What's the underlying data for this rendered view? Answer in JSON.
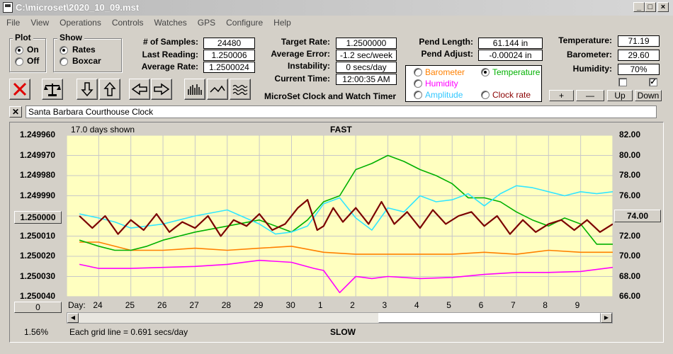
{
  "window": {
    "title": "C:\\microset\\2020_10_09.mst"
  },
  "menu": [
    "File",
    "View",
    "Operations",
    "Controls",
    "Watches",
    "GPS",
    "Configure",
    "Help"
  ],
  "plot": {
    "label": "Plot",
    "on": "On",
    "off": "Off",
    "selected": "On"
  },
  "show": {
    "label": "Show",
    "rates": "Rates",
    "boxcar": "Boxcar",
    "selected": "Rates"
  },
  "stats": {
    "samples_label": "# of Samples:",
    "samples": "24480",
    "last_label": "Last Reading:",
    "last": "1.250006",
    "avg_label": "Average Rate:",
    "avg": "1.2500024",
    "target_label": "Target Rate:",
    "target": "1.2500000",
    "avg_err_label": "Average Error:",
    "avg_err": "-1.2 sec/week",
    "instab_label": "Instability:",
    "instab": "0 secs/day",
    "time_label": "Current Time:",
    "time": "12:00:35 AM",
    "pend_len_label": "Pend Length:",
    "pend_len": "61.144 in",
    "pend_adj_label": "Pend Adjust:",
    "pend_adj": "-0.00024 in",
    "temp_label": "Temperature:",
    "temp": "71.19",
    "baro_label": "Barometer:",
    "baro": "29.60",
    "hum_label": "Humidity:",
    "hum": "70%"
  },
  "app_subtitle": "MicroSet Clock and Watch Timer",
  "legend": {
    "barometer": "Barometer",
    "temperature": "Temperature",
    "humidity": "Humidity",
    "amplitude": "Amplitude",
    "clock_rate": "Clock rate",
    "selected": "Temperature"
  },
  "sensor_buttons": {
    "plus": "+",
    "minus": "—",
    "up": "Up",
    "down": "Down"
  },
  "clock_name": "Santa Barbara Courthouse Clock",
  "chart_header": {
    "days_shown": "17.0 days shown",
    "fast": "FAST",
    "slow": "SLOW",
    "grid_note": "Each grid line = 0.691 secs/day",
    "zoom": "1.56%",
    "left_btn": "1.250000",
    "right_btn": "74.00",
    "bottom_btn": "0",
    "day_label": "Day:"
  },
  "colors": {
    "plot_bg": "#ffffc0",
    "rate": "#7b0000",
    "temperature": "#00b000",
    "barometer": "#ff8000",
    "humidity": "#ff00ff",
    "amplitude": "#33e6ff"
  },
  "chart_data": {
    "type": "line",
    "x_unit": "day",
    "x_ticks": [
      "24",
      "25",
      "26",
      "27",
      "28",
      "29",
      "30",
      "1",
      "2",
      "3",
      "4",
      "5",
      "6",
      "7",
      "8",
      "9"
    ],
    "y_left_ticks": [
      "1.249960",
      "1.249970",
      "1.249980",
      "1.249990",
      "1.250000",
      "1.250010",
      "1.250020",
      "1.250030",
      "1.250040"
    ],
    "y_left_lim": [
      1.25004,
      1.24996
    ],
    "y_right_ticks": [
      "82.00",
      "80.00",
      "78.00",
      "76.00",
      "74.00",
      "72.00",
      "70.00",
      "68.00",
      "66.00"
    ],
    "y_right_lim": [
      66,
      82
    ],
    "series": [
      {
        "name": "Clock rate",
        "color": "#7b0000",
        "axis": "left",
        "x": [
          23.4,
          23.8,
          24.2,
          24.6,
          25.0,
          25.4,
          25.8,
          26.2,
          26.6,
          27.0,
          27.4,
          27.8,
          28.2,
          28.6,
          29.0,
          29.4,
          29.8,
          30.2,
          30.5,
          30.8,
          31.0,
          31.3,
          31.6,
          32.0,
          32.4,
          32.8,
          33.2,
          33.6,
          34.0,
          34.4,
          34.8,
          35.2,
          35.6,
          36.0,
          36.4,
          36.8,
          37.2,
          37.6,
          38.0,
          38.4,
          38.8,
          39.2,
          39.6,
          40.0
        ],
        "y": [
          1.25,
          1.250006,
          1.25,
          1.250009,
          1.250002,
          1.250007,
          1.249999,
          1.250008,
          1.250003,
          1.250006,
          1.25,
          1.25001,
          1.250002,
          1.250005,
          1.249999,
          1.250007,
          1.250004,
          1.249996,
          1.249992,
          1.250007,
          1.250005,
          1.249996,
          1.250003,
          1.249996,
          1.250004,
          1.249993,
          1.250004,
          1.249998,
          1.250006,
          1.249997,
          1.250004,
          1.25,
          1.249998,
          1.250005,
          1.25,
          1.250009,
          1.250002,
          1.250008,
          1.250004,
          1.250002,
          1.250007,
          1.250002,
          1.250008,
          1.250004
        ]
      },
      {
        "name": "Temperature",
        "color": "#00b000",
        "axis": "right",
        "x": [
          23.4,
          24.0,
          24.5,
          25.0,
          25.5,
          26.0,
          27.0,
          28.0,
          29.0,
          30.0,
          30.5,
          31.0,
          31.5,
          32.0,
          32.5,
          33.0,
          33.5,
          34.0,
          34.5,
          35.0,
          35.5,
          36.0,
          36.5,
          37.0,
          37.5,
          38.0,
          38.5,
          39.0,
          39.5,
          40.0
        ],
        "y": [
          71.6,
          71.0,
          70.6,
          70.6,
          71.0,
          71.6,
          72.4,
          73.0,
          73.6,
          72.4,
          73.6,
          75.4,
          76.0,
          78.6,
          79.2,
          80.0,
          79.4,
          78.6,
          78.0,
          77.2,
          75.8,
          75.8,
          75.4,
          74.4,
          73.6,
          73.0,
          73.8,
          73.2,
          71.2,
          71.2
        ]
      },
      {
        "name": "Barometer",
        "color": "#ff8000",
        "axis": "right",
        "x": [
          23.4,
          24.0,
          25.0,
          26.0,
          27.0,
          28.0,
          29.0,
          30.0,
          31.0,
          32.0,
          33.0,
          34.0,
          35.0,
          36.0,
          37.0,
          38.0,
          39.0,
          40.0
        ],
        "y": [
          71.4,
          71.4,
          70.6,
          70.6,
          70.8,
          70.6,
          70.8,
          71.0,
          70.4,
          70.2,
          70.2,
          70.2,
          70.2,
          70.4,
          70.2,
          70.6,
          70.4,
          70.4
        ]
      },
      {
        "name": "Humidity",
        "color": "#ff00ff",
        "axis": "right",
        "x": [
          23.4,
          24.0,
          25.0,
          26.0,
          27.0,
          28.0,
          29.0,
          30.0,
          30.7,
          31.0,
          31.5,
          32.0,
          32.5,
          33.0,
          34.0,
          35.0,
          36.0,
          37.0,
          38.0,
          39.0,
          40.0
        ],
        "y": [
          69.2,
          68.8,
          68.8,
          68.9,
          69.0,
          69.2,
          69.6,
          69.4,
          68.8,
          68.6,
          66.4,
          68.0,
          67.8,
          68.0,
          67.8,
          67.9,
          68.2,
          68.4,
          68.4,
          68.5,
          68.9
        ]
      },
      {
        "name": "Amplitude",
        "color": "#33e6ff",
        "axis": "right",
        "x": [
          23.4,
          24.0,
          24.5,
          25.0,
          26.0,
          27.0,
          28.0,
          29.0,
          29.5,
          30.0,
          30.5,
          31.0,
          31.5,
          32.0,
          32.5,
          33.0,
          33.5,
          34.0,
          34.5,
          35.0,
          35.5,
          36.0,
          36.5,
          37.0,
          37.5,
          38.0,
          38.5,
          39.0,
          39.5,
          40.0
        ],
        "y": [
          74.2,
          73.8,
          73.4,
          72.8,
          73.2,
          74.0,
          74.6,
          73.2,
          72.2,
          72.4,
          73.0,
          75.2,
          75.8,
          73.8,
          72.6,
          74.8,
          74.4,
          76.0,
          75.4,
          75.6,
          76.2,
          75.0,
          76.2,
          77.0,
          76.8,
          76.4,
          76.0,
          76.4,
          76.2,
          76.4
        ]
      }
    ]
  }
}
